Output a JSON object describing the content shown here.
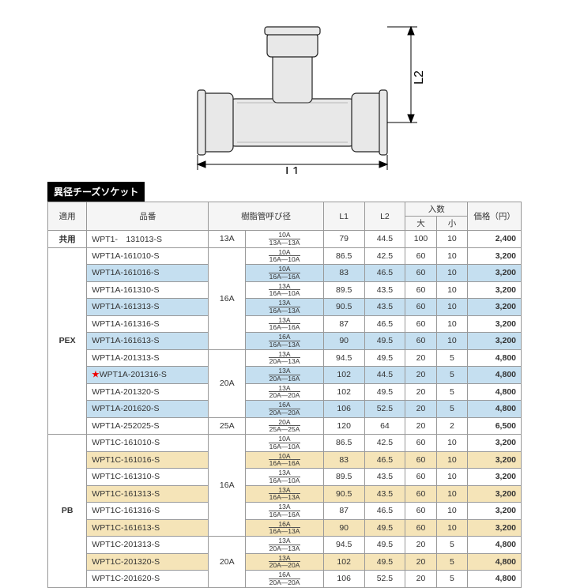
{
  "diagram": {
    "l1_label": "L1",
    "l2_label": "L2"
  },
  "title": "異径チーズソケット",
  "headers": {
    "app": "適用",
    "code": "品番",
    "pipe": "樹脂管呼び径",
    "l1": "L1",
    "l2": "L2",
    "qty": "入数",
    "qty_big": "大",
    "qty_small": "小",
    "price": "価格（円）"
  },
  "groups": [
    {
      "label": "共用",
      "size_groups": [
        {
          "size": "13A",
          "rows": [
            {
              "code": "WPT1-　131013-S",
              "pipe_top": "10A",
              "pipe_bot": "13A—13A",
              "l1": "79",
              "l2": "44.5",
              "q1": "100",
              "q2": "10",
              "price": "2,400",
              "shade": "light"
            }
          ]
        }
      ]
    },
    {
      "label": "PEX",
      "size_groups": [
        {
          "size": "16A",
          "rows": [
            {
              "code": "WPT1A-161010-S",
              "pipe_top": "10A",
              "pipe_bot": "16A—10A",
              "l1": "86.5",
              "l2": "42.5",
              "q1": "60",
              "q2": "10",
              "price": "3,200",
              "shade": "light"
            },
            {
              "code": "WPT1A-161016-S",
              "pipe_top": "10A",
              "pipe_bot": "16A—16A",
              "l1": "83",
              "l2": "46.5",
              "q1": "60",
              "q2": "10",
              "price": "3,200",
              "shade": "dark"
            },
            {
              "code": "WPT1A-161310-S",
              "pipe_top": "13A",
              "pipe_bot": "16A—10A",
              "l1": "89.5",
              "l2": "43.5",
              "q1": "60",
              "q2": "10",
              "price": "3,200",
              "shade": "light"
            },
            {
              "code": "WPT1A-161313-S",
              "pipe_top": "13A",
              "pipe_bot": "16A—13A",
              "l1": "90.5",
              "l2": "43.5",
              "q1": "60",
              "q2": "10",
              "price": "3,200",
              "shade": "dark"
            },
            {
              "code": "WPT1A-161316-S",
              "pipe_top": "13A",
              "pipe_bot": "16A—16A",
              "l1": "87",
              "l2": "46.5",
              "q1": "60",
              "q2": "10",
              "price": "3,200",
              "shade": "light"
            },
            {
              "code": "WPT1A-161613-S",
              "pipe_top": "16A",
              "pipe_bot": "16A—13A",
              "l1": "90",
              "l2": "49.5",
              "q1": "60",
              "q2": "10",
              "price": "3,200",
              "shade": "dark"
            }
          ]
        },
        {
          "size": "20A",
          "rows": [
            {
              "code": "WPT1A-201313-S",
              "pipe_top": "13A",
              "pipe_bot": "20A—13A",
              "l1": "94.5",
              "l2": "49.5",
              "q1": "20",
              "q2": "5",
              "price": "4,800",
              "shade": "light"
            },
            {
              "code": "WPT1A-201316-S",
              "star": true,
              "pipe_top": "13A",
              "pipe_bot": "20A—16A",
              "l1": "102",
              "l2": "44.5",
              "q1": "20",
              "q2": "5",
              "price": "4,800",
              "shade": "dark"
            },
            {
              "code": "WPT1A-201320-S",
              "pipe_top": "13A",
              "pipe_bot": "20A—20A",
              "l1": "102",
              "l2": "49.5",
              "q1": "20",
              "q2": "5",
              "price": "4,800",
              "shade": "light"
            },
            {
              "code": "WPT1A-201620-S",
              "pipe_top": "16A",
              "pipe_bot": "20A—20A",
              "l1": "106",
              "l2": "52.5",
              "q1": "20",
              "q2": "5",
              "price": "4,800",
              "shade": "dark"
            }
          ]
        },
        {
          "size": "25A",
          "rows": [
            {
              "code": "WPT1A-252025-S",
              "pipe_top": "20A",
              "pipe_bot": "25A—25A",
              "l1": "120",
              "l2": "64",
              "q1": "20",
              "q2": "2",
              "price": "6,500",
              "shade": "light"
            }
          ]
        }
      ]
    },
    {
      "label": "PB",
      "size_groups": [
        {
          "size": "16A",
          "rows": [
            {
              "code": "WPT1C-161010-S",
              "pipe_top": "10A",
              "pipe_bot": "16A—10A",
              "l1": "86.5",
              "l2": "42.5",
              "q1": "60",
              "q2": "10",
              "price": "3,200",
              "shade": "light"
            },
            {
              "code": "WPT1C-161016-S",
              "pipe_top": "10A",
              "pipe_bot": "16A—16A",
              "l1": "83",
              "l2": "46.5",
              "q1": "60",
              "q2": "10",
              "price": "3,200",
              "shade": "dark"
            },
            {
              "code": "WPT1C-161310-S",
              "pipe_top": "13A",
              "pipe_bot": "16A—10A",
              "l1": "89.5",
              "l2": "43.5",
              "q1": "60",
              "q2": "10",
              "price": "3,200",
              "shade": "light"
            },
            {
              "code": "WPT1C-161313-S",
              "pipe_top": "13A",
              "pipe_bot": "16A—13A",
              "l1": "90.5",
              "l2": "43.5",
              "q1": "60",
              "q2": "10",
              "price": "3,200",
              "shade": "dark"
            },
            {
              "code": "WPT1C-161316-S",
              "pipe_top": "13A",
              "pipe_bot": "16A—16A",
              "l1": "87",
              "l2": "46.5",
              "q1": "60",
              "q2": "10",
              "price": "3,200",
              "shade": "light"
            },
            {
              "code": "WPT1C-161613-S",
              "pipe_top": "16A",
              "pipe_bot": "16A—13A",
              "l1": "90",
              "l2": "49.5",
              "q1": "60",
              "q2": "10",
              "price": "3,200",
              "shade": "dark"
            }
          ]
        },
        {
          "size": "20A",
          "rows": [
            {
              "code": "WPT1C-201313-S",
              "pipe_top": "13A",
              "pipe_bot": "20A—13A",
              "l1": "94.5",
              "l2": "49.5",
              "q1": "20",
              "q2": "5",
              "price": "4,800",
              "shade": "light"
            },
            {
              "code": "WPT1C-201320-S",
              "pipe_top": "13A",
              "pipe_bot": "20A—20A",
              "l1": "102",
              "l2": "49.5",
              "q1": "20",
              "q2": "5",
              "price": "4,800",
              "shade": "dark"
            },
            {
              "code": "WPT1C-201620-S",
              "pipe_top": "16A",
              "pipe_bot": "20A—20A",
              "l1": "106",
              "l2": "52.5",
              "q1": "20",
              "q2": "5",
              "price": "4,800",
              "shade": "light"
            }
          ]
        }
      ]
    }
  ],
  "shade_palette": {
    "PEX_dark": "#c5dff0",
    "PEX_light": "#ffffff",
    "PB_dark": "#f5e4b8",
    "PB_light": "#ffffff",
    "共用_light": "#ffffff"
  }
}
